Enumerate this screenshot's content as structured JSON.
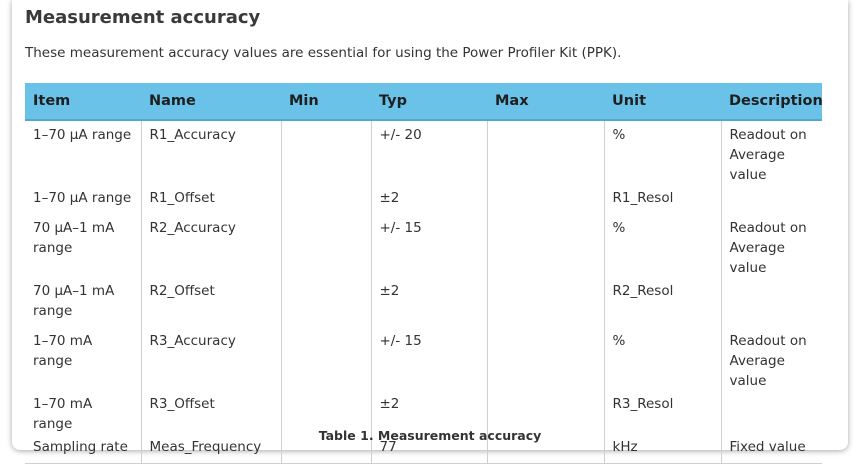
{
  "heading": "Measurement accuracy",
  "intro": "These measurement accuracy values are essential for using the Power Profiler Kit (PPK).",
  "table": {
    "headers": [
      "Item",
      "Name",
      "Min",
      "Typ",
      "Max",
      "Unit",
      "Description"
    ],
    "rows": [
      [
        "1–70 µA range",
        "R1_Accuracy",
        "",
        "+/- 20",
        "",
        "%",
        "Readout on Average value"
      ],
      [
        "1–70 µA range",
        "R1_Offset",
        "",
        "±2",
        "",
        "R1_Resol",
        ""
      ],
      [
        "70 µA–1 mA range",
        "R2_Accuracy",
        "",
        "+/- 15",
        "",
        "%",
        "Readout on Average value"
      ],
      [
        "70 µA–1 mA range",
        "R2_Offset",
        "",
        "±2",
        "",
        "R2_Resol",
        ""
      ],
      [
        "1–70 mA range",
        "R3_Accuracy",
        "",
        "+/- 15",
        "",
        "%",
        "Readout on Average value"
      ],
      [
        "1–70 mA range",
        "R3_Offset",
        "",
        "±2",
        "",
        "R3_Resol",
        ""
      ],
      [
        "Sampling rate",
        "Meas_Frequency",
        "",
        "77",
        "",
        "kHz",
        "Fixed value"
      ]
    ]
  },
  "caption": "Table 1. Measurement accuracy",
  "colors": {
    "header_background": "#6ac2e8",
    "text": "#333333"
  }
}
